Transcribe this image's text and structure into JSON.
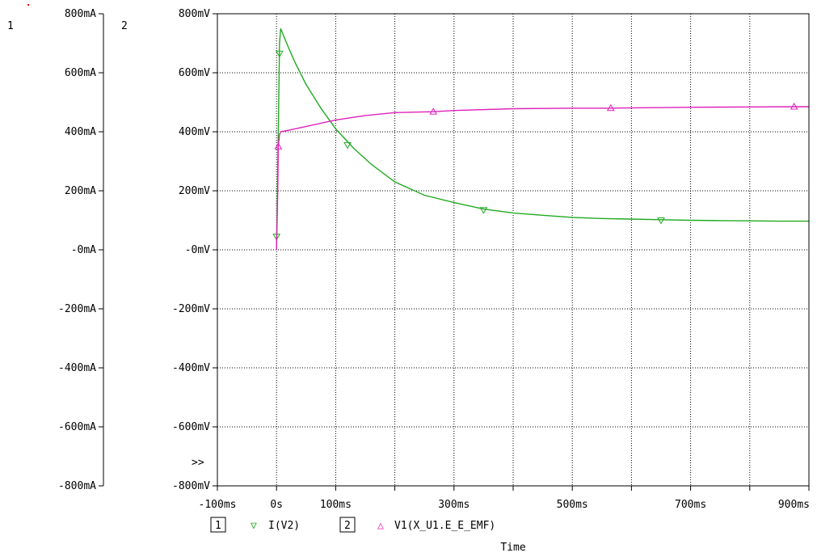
{
  "chart_data": {
    "type": "line",
    "xlabel": "Time",
    "x_ticks": [
      "-100ms",
      "0s",
      "100ms",
      "300ms",
      "500ms",
      "700ms",
      "900ms"
    ],
    "x_tick_values": [
      -100,
      0,
      100,
      300,
      500,
      700,
      900
    ],
    "xlim": [
      -100,
      900
    ],
    "x_gridlines": [
      -100,
      0,
      100,
      200,
      300,
      400,
      500,
      600,
      700,
      800,
      900
    ],
    "grid": true,
    "axis1": {
      "id": "1",
      "unit": "mA",
      "ylim": [
        -800,
        800
      ],
      "ticks": [
        "800mA",
        "600mA",
        "400mA",
        "200mA",
        "-0mA",
        "-200mA",
        "-400mA",
        "-600mA",
        "-800mA"
      ]
    },
    "axis2": {
      "id": "2",
      "unit": "mV",
      "ylim": [
        -800,
        800
      ],
      "ticks": [
        "800mV",
        "600mV",
        "400mV",
        "200mV",
        "-0mV",
        "-200mV",
        "-400mV",
        "-600mV",
        "-800mV"
      ]
    },
    "overflow_marker": ">>",
    "series": [
      {
        "name": "I(V2)",
        "axis": "1",
        "color": "#22aa22",
        "marker": "triangle-down",
        "marker_x": [
          0,
          5,
          120,
          350,
          650
        ],
        "marker_y": [
          45,
          665,
          355,
          135,
          100
        ],
        "x": [
          0,
          3,
          5,
          7,
          15,
          30,
          50,
          75,
          100,
          130,
          160,
          200,
          250,
          300,
          350,
          400,
          450,
          500,
          550,
          600,
          650,
          700,
          750,
          800,
          850,
          900,
          950
        ],
        "y": [
          10,
          400,
          700,
          750,
          710,
          640,
          560,
          480,
          410,
          345,
          290,
          230,
          185,
          160,
          138,
          125,
          117,
          110,
          106,
          104,
          102,
          100,
          99,
          98,
          97,
          97,
          97
        ]
      },
      {
        "name": "V1(X_U1.E_E_EMF)",
        "axis": "2",
        "color": "#dd22bb",
        "marker": "triangle-up",
        "marker_x": [
          3,
          265,
          565,
          875
        ],
        "marker_y": [
          350,
          468,
          480,
          485
        ],
        "x": [
          0,
          2,
          3,
          5,
          7,
          20,
          50,
          100,
          150,
          200,
          265,
          300,
          400,
          500,
          565,
          600,
          700,
          800,
          875,
          950
        ],
        "y": [
          0,
          200,
          350,
          390,
          400,
          405,
          418,
          440,
          455,
          465,
          468,
          472,
          478,
          480,
          480,
          481,
          483,
          484,
          485,
          485
        ]
      }
    ],
    "legend": {
      "items": [
        {
          "box": "1",
          "symbol": "▽",
          "label": "I(V2)"
        },
        {
          "box": "2",
          "symbol": "△",
          "label": "V1(X_U1.E_E_EMF)"
        }
      ]
    }
  }
}
